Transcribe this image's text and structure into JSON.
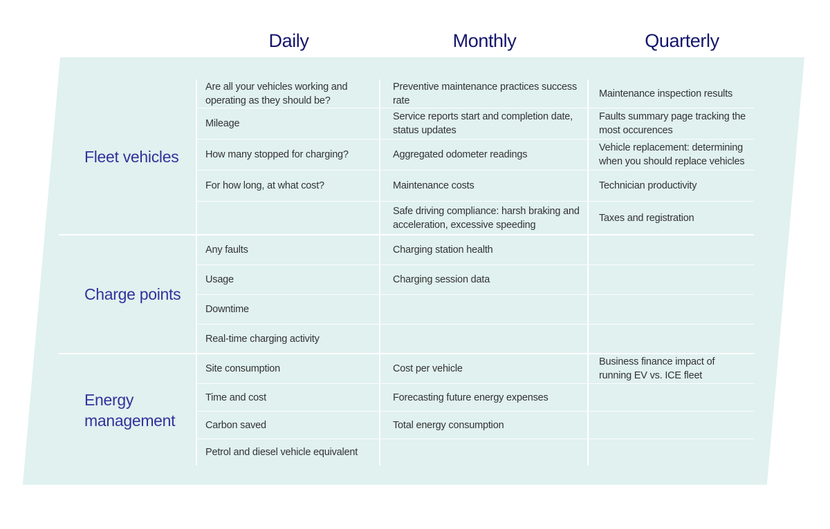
{
  "panel": {
    "background_color": "#e0f1ef"
  },
  "colors": {
    "header_text": "#15156d",
    "section_label_text": "#32329b",
    "body_text": "#333333",
    "divider_line": "#ffffff"
  },
  "table": {
    "columns": [
      {
        "label": "Daily"
      },
      {
        "label": "Monthly"
      },
      {
        "label": "Quarterly"
      }
    ],
    "sections": [
      {
        "label": "Fleet vehicles",
        "rows": [
          {
            "daily": "Are all your vehicles working and operating as they should be?",
            "monthly": "Preventive maintenance practices success rate",
            "quarterly": "Maintenance inspection results"
          },
          {
            "daily": "Mileage",
            "monthly": "Service reports start and completion date, status updates",
            "quarterly": "Faults summary page tracking the most occurences"
          },
          {
            "daily": "How many stopped for charging?",
            "monthly": "Aggregated odometer readings",
            "quarterly": "Vehicle replacement: determining when you should replace vehicles"
          },
          {
            "daily": "For how long, at what cost?",
            "monthly": "Maintenance costs",
            "quarterly": "Technician productivity"
          },
          {
            "daily": "",
            "monthly": "Safe driving compliance: harsh braking and acceleration, excessive speeding",
            "quarterly": "Taxes and registration"
          }
        ]
      },
      {
        "label": "Charge points",
        "rows": [
          {
            "daily": "Any faults",
            "monthly": "Charging station health",
            "quarterly": ""
          },
          {
            "daily": "Usage",
            "monthly": "Charging session data",
            "quarterly": ""
          },
          {
            "daily": "Downtime",
            "monthly": "",
            "quarterly": ""
          },
          {
            "daily": "Real-time charging activity",
            "monthly": "",
            "quarterly": ""
          }
        ]
      },
      {
        "label": "Energy management",
        "rows": [
          {
            "daily": "Site consumption",
            "monthly": "Cost per vehicle",
            "quarterly": "Business finance impact of running EV vs. ICE fleet"
          },
          {
            "daily": "Time and cost",
            "monthly": "Forecasting future energy expenses",
            "quarterly": ""
          },
          {
            "daily": "Carbon saved",
            "monthly": "Total energy consumption",
            "quarterly": ""
          },
          {
            "daily": "Petrol and diesel vehicle equivalent",
            "monthly": "",
            "quarterly": ""
          }
        ]
      }
    ]
  },
  "chart_data": {
    "type": "table",
    "title": "",
    "columns": [
      "Category",
      "Daily",
      "Monthly",
      "Quarterly"
    ],
    "rows": [
      [
        "Fleet vehicles",
        "Are all your vehicles working and operating as they should be?",
        "Preventive maintenance practices success rate",
        "Maintenance inspection results"
      ],
      [
        "Fleet vehicles",
        "Mileage",
        "Service reports start and completion date, status updates",
        "Faults summary page tracking the most occurences"
      ],
      [
        "Fleet vehicles",
        "How many stopped for charging?",
        "Aggregated odometer readings",
        "Vehicle replacement: determining when you should replace vehicles"
      ],
      [
        "Fleet vehicles",
        "For how long, at what cost?",
        "Maintenance costs",
        "Technician productivity"
      ],
      [
        "Fleet vehicles",
        "",
        "Safe driving compliance: harsh braking and acceleration, excessive speeding",
        "Taxes and registration"
      ],
      [
        "Charge points",
        "Any faults",
        "Charging station health",
        ""
      ],
      [
        "Charge points",
        "Usage",
        "Charging session data",
        ""
      ],
      [
        "Charge points",
        "Downtime",
        "",
        ""
      ],
      [
        "Charge points",
        "Real-time charging activity",
        "",
        ""
      ],
      [
        "Energy management",
        "Site consumption",
        "Cost per vehicle",
        "Business finance impact of running EV vs. ICE fleet"
      ],
      [
        "Energy management",
        "Time and cost",
        "Forecasting future energy expenses",
        ""
      ],
      [
        "Energy management",
        "Carbon saved",
        "Total energy consumption",
        ""
      ],
      [
        "Energy management",
        "Petrol and diesel vehicle equivalent",
        "",
        ""
      ]
    ]
  }
}
